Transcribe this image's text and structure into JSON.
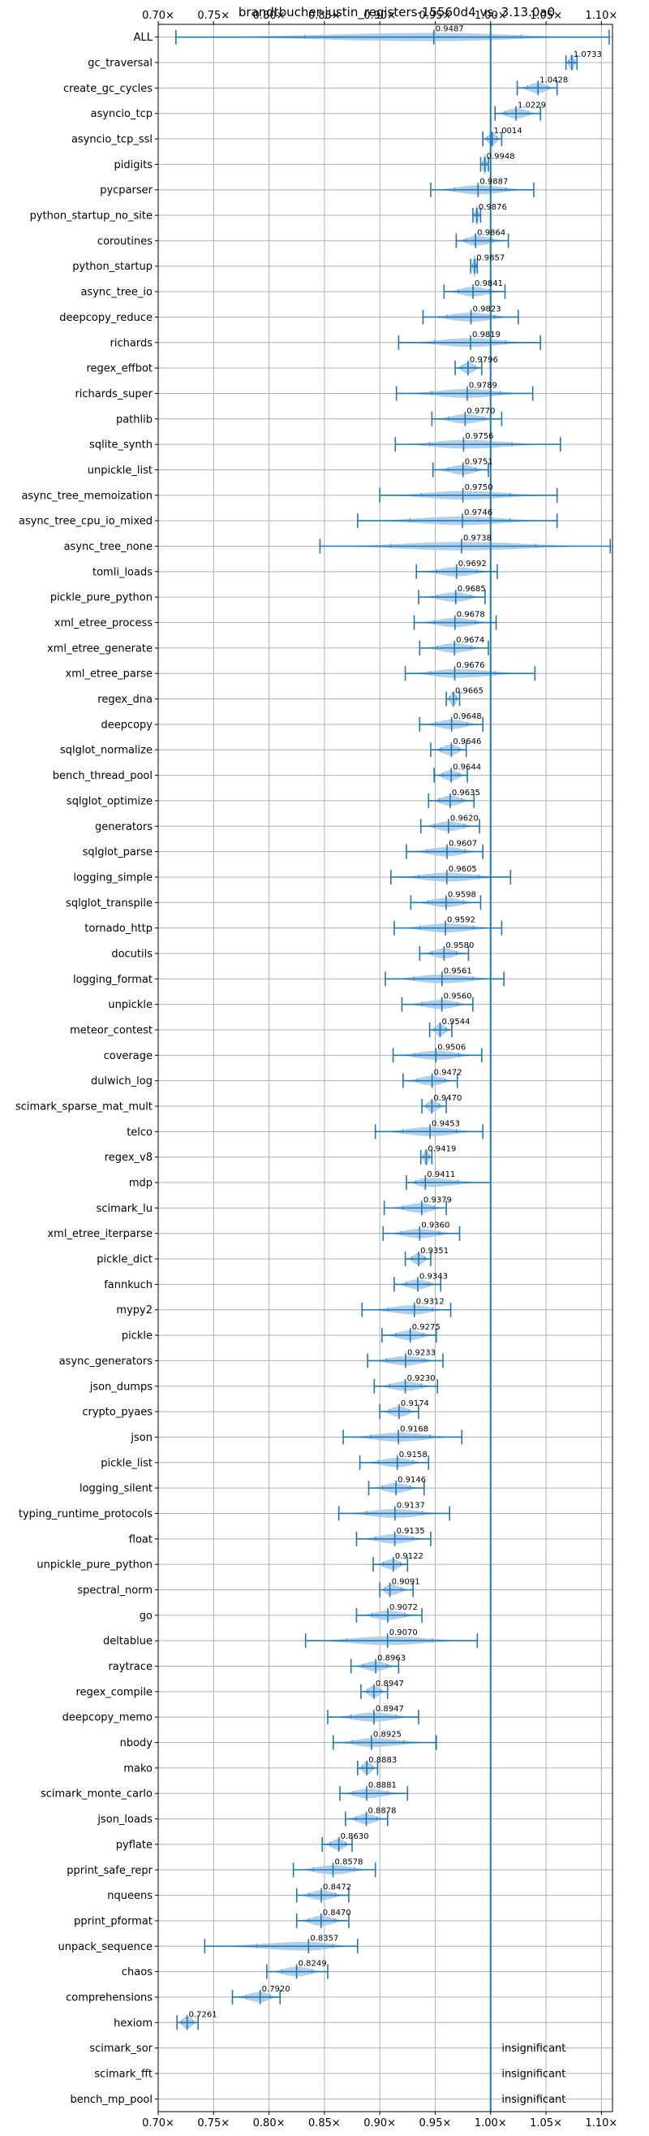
{
  "chart_data": {
    "type": "violin",
    "title": "brandtbucher-justin_registers-15560d4 vs. 3.13.0a0",
    "xlabel": "",
    "ylabel": "",
    "xlim": [
      0.7,
      1.11
    ],
    "xticks": [
      0.7,
      0.75,
      0.8,
      0.85,
      0.9,
      0.95,
      1.0,
      1.05,
      1.1
    ],
    "xtick_labels": [
      "0.70×",
      "0.75×",
      "0.80×",
      "0.85×",
      "0.90×",
      "0.95×",
      "1.00×",
      "1.05×",
      "1.10×"
    ],
    "reference_line": 1.0,
    "grid": true,
    "colors": {
      "violin": "#a6c8e6",
      "line": "#1f77b4",
      "grid": "#b0b0b0"
    },
    "insignificant_text": "insignificant",
    "benchmarks": [
      {
        "name": "ALL",
        "value": 0.9487,
        "label": "0.9487",
        "min": 0.716,
        "max": 1.107
      },
      {
        "name": "gc_traversal",
        "value": 1.0733,
        "label": "1.0733",
        "min": 1.068,
        "max": 1.078
      },
      {
        "name": "create_gc_cycles",
        "value": 1.0428,
        "label": "1.0428",
        "min": 1.024,
        "max": 1.06
      },
      {
        "name": "asyncio_tcp",
        "value": 1.0229,
        "label": "1.0229",
        "min": 1.004,
        "max": 1.045
      },
      {
        "name": "asyncio_tcp_ssl",
        "value": 1.0014,
        "label": "1.0014",
        "min": 0.993,
        "max": 1.01
      },
      {
        "name": "pidigits",
        "value": 0.9948,
        "label": "0.9948",
        "min": 0.991,
        "max": 0.998
      },
      {
        "name": "pycparser",
        "value": 0.9887,
        "label": "0.9887",
        "min": 0.946,
        "max": 1.039
      },
      {
        "name": "python_startup_no_site",
        "value": 0.9876,
        "label": "0.9876",
        "min": 0.984,
        "max": 0.991
      },
      {
        "name": "coroutines",
        "value": 0.9864,
        "label": "0.9864",
        "min": 0.969,
        "max": 1.016
      },
      {
        "name": "python_startup",
        "value": 0.9857,
        "label": "0.9857",
        "min": 0.982,
        "max": 0.988
      },
      {
        "name": "async_tree_io",
        "value": 0.9841,
        "label": "0.9841",
        "min": 0.958,
        "max": 1.013
      },
      {
        "name": "deepcopy_reduce",
        "value": 0.9823,
        "label": "0.9823",
        "min": 0.939,
        "max": 1.025
      },
      {
        "name": "richards",
        "value": 0.9819,
        "label": "0.9819",
        "min": 0.917,
        "max": 1.045
      },
      {
        "name": "regex_effbot",
        "value": 0.9796,
        "label": "0.9796",
        "min": 0.968,
        "max": 0.992
      },
      {
        "name": "richards_super",
        "value": 0.9789,
        "label": "0.9789",
        "min": 0.915,
        "max": 1.038
      },
      {
        "name": "pathlib",
        "value": 0.977,
        "label": "0.9770",
        "min": 0.947,
        "max": 1.01
      },
      {
        "name": "sqlite_synth",
        "value": 0.9756,
        "label": "0.9756",
        "min": 0.914,
        "max": 1.063
      },
      {
        "name": "unpickle_list",
        "value": 0.9751,
        "label": "0.9751",
        "min": 0.948,
        "max": 0.998
      },
      {
        "name": "async_tree_memoization",
        "value": 0.975,
        "label": "0.9750",
        "min": 0.9,
        "max": 1.06
      },
      {
        "name": "async_tree_cpu_io_mixed",
        "value": 0.9746,
        "label": "0.9746",
        "min": 0.88,
        "max": 1.06
      },
      {
        "name": "async_tree_none",
        "value": 0.9738,
        "label": "0.9738",
        "min": 0.846,
        "max": 1.108
      },
      {
        "name": "tomli_loads",
        "value": 0.9692,
        "label": "0.9692",
        "min": 0.933,
        "max": 1.006
      },
      {
        "name": "pickle_pure_python",
        "value": 0.9685,
        "label": "0.9685",
        "min": 0.935,
        "max": 0.995
      },
      {
        "name": "xml_etree_process",
        "value": 0.9678,
        "label": "0.9678",
        "min": 0.931,
        "max": 1.005
      },
      {
        "name": "xml_etree_generate",
        "value": 0.9674,
        "label": "0.9674",
        "min": 0.936,
        "max": 0.998
      },
      {
        "name": "xml_etree_parse",
        "value": 0.9676,
        "label": "0.9676",
        "min": 0.923,
        "max": 1.04
      },
      {
        "name": "regex_dna",
        "value": 0.9665,
        "label": "0.9665",
        "min": 0.96,
        "max": 0.972
      },
      {
        "name": "deepcopy",
        "value": 0.9648,
        "label": "0.9648",
        "min": 0.936,
        "max": 0.993
      },
      {
        "name": "sqlglot_normalize",
        "value": 0.9646,
        "label": "0.9646",
        "min": 0.946,
        "max": 0.978
      },
      {
        "name": "bench_thread_pool",
        "value": 0.9644,
        "label": "0.9644",
        "min": 0.949,
        "max": 0.979
      },
      {
        "name": "sqlglot_optimize",
        "value": 0.9635,
        "label": "0.9635",
        "min": 0.944,
        "max": 0.985
      },
      {
        "name": "generators",
        "value": 0.962,
        "label": "0.9620",
        "min": 0.937,
        "max": 0.99
      },
      {
        "name": "sqlglot_parse",
        "value": 0.9607,
        "label": "0.9607",
        "min": 0.924,
        "max": 0.993
      },
      {
        "name": "logging_simple",
        "value": 0.9605,
        "label": "0.9605",
        "min": 0.91,
        "max": 1.018
      },
      {
        "name": "sqlglot_transpile",
        "value": 0.9598,
        "label": "0.9598",
        "min": 0.928,
        "max": 0.991
      },
      {
        "name": "tornado_http",
        "value": 0.9592,
        "label": "0.9592",
        "min": 0.913,
        "max": 1.01
      },
      {
        "name": "docutils",
        "value": 0.958,
        "label": "0.9580",
        "min": 0.936,
        "max": 0.98
      },
      {
        "name": "logging_format",
        "value": 0.9561,
        "label": "0.9561",
        "min": 0.905,
        "max": 1.012
      },
      {
        "name": "unpickle",
        "value": 0.956,
        "label": "0.9560",
        "min": 0.92,
        "max": 0.984
      },
      {
        "name": "meteor_contest",
        "value": 0.9544,
        "label": "0.9544",
        "min": 0.945,
        "max": 0.965
      },
      {
        "name": "coverage",
        "value": 0.9506,
        "label": "0.9506",
        "min": 0.912,
        "max": 0.992
      },
      {
        "name": "dulwich_log",
        "value": 0.9472,
        "label": "0.9472",
        "min": 0.921,
        "max": 0.97
      },
      {
        "name": "scimark_sparse_mat_mult",
        "value": 0.947,
        "label": "0.9470",
        "min": 0.938,
        "max": 0.96
      },
      {
        "name": "telco",
        "value": 0.9453,
        "label": "0.9453",
        "min": 0.896,
        "max": 0.993
      },
      {
        "name": "regex_v8",
        "value": 0.9419,
        "label": "0.9419",
        "min": 0.937,
        "max": 0.947
      },
      {
        "name": "mdp",
        "value": 0.9411,
        "label": "0.9411",
        "min": 0.924,
        "max": 1.0
      },
      {
        "name": "scimark_lu",
        "value": 0.9379,
        "label": "0.9379",
        "min": 0.904,
        "max": 0.96
      },
      {
        "name": "xml_etree_iterparse",
        "value": 0.936,
        "label": "0.9360",
        "min": 0.903,
        "max": 0.972
      },
      {
        "name": "pickle_dict",
        "value": 0.9351,
        "label": "0.9351",
        "min": 0.923,
        "max": 0.946
      },
      {
        "name": "fannkuch",
        "value": 0.9343,
        "label": "0.9343",
        "min": 0.913,
        "max": 0.955
      },
      {
        "name": "mypy2",
        "value": 0.9312,
        "label": "0.9312",
        "min": 0.884,
        "max": 0.964
      },
      {
        "name": "pickle",
        "value": 0.9275,
        "label": "0.9275",
        "min": 0.902,
        "max": 0.951
      },
      {
        "name": "async_generators",
        "value": 0.9233,
        "label": "0.9233",
        "min": 0.889,
        "max": 0.957
      },
      {
        "name": "json_dumps",
        "value": 0.923,
        "label": "0.9230",
        "min": 0.895,
        "max": 0.952
      },
      {
        "name": "crypto_pyaes",
        "value": 0.9174,
        "label": "0.9174",
        "min": 0.9,
        "max": 0.935
      },
      {
        "name": "json",
        "value": 0.9168,
        "label": "0.9168",
        "min": 0.867,
        "max": 0.974
      },
      {
        "name": "pickle_list",
        "value": 0.9158,
        "label": "0.9158",
        "min": 0.882,
        "max": 0.944
      },
      {
        "name": "logging_silent",
        "value": 0.9146,
        "label": "0.9146",
        "min": 0.89,
        "max": 0.94
      },
      {
        "name": "typing_runtime_protocols",
        "value": 0.9137,
        "label": "0.9137",
        "min": 0.863,
        "max": 0.963
      },
      {
        "name": "float",
        "value": 0.9135,
        "label": "0.9135",
        "min": 0.879,
        "max": 0.946
      },
      {
        "name": "unpickle_pure_python",
        "value": 0.9122,
        "label": "0.9122",
        "min": 0.894,
        "max": 0.925
      },
      {
        "name": "spectral_norm",
        "value": 0.9091,
        "label": "0.9091",
        "min": 0.9,
        "max": 0.93
      },
      {
        "name": "go",
        "value": 0.9072,
        "label": "0.9072",
        "min": 0.879,
        "max": 0.938
      },
      {
        "name": "deltablue",
        "value": 0.907,
        "label": "0.9070",
        "min": 0.833,
        "max": 0.988
      },
      {
        "name": "raytrace",
        "value": 0.8963,
        "label": "0.8963",
        "min": 0.874,
        "max": 0.917
      },
      {
        "name": "regex_compile",
        "value": 0.8947,
        "label": "0.8947",
        "min": 0.883,
        "max": 0.907
      },
      {
        "name": "deepcopy_memo",
        "value": 0.8947,
        "label": "0.8947",
        "min": 0.853,
        "max": 0.935
      },
      {
        "name": "nbody",
        "value": 0.8925,
        "label": "0.8925",
        "min": 0.858,
        "max": 0.951
      },
      {
        "name": "mako",
        "value": 0.8883,
        "label": "0.8883",
        "min": 0.88,
        "max": 0.898
      },
      {
        "name": "scimark_monte_carlo",
        "value": 0.8881,
        "label": "0.8881",
        "min": 0.864,
        "max": 0.925
      },
      {
        "name": "json_loads",
        "value": 0.8878,
        "label": "0.8878",
        "min": 0.869,
        "max": 0.907
      },
      {
        "name": "pyflate",
        "value": 0.863,
        "label": "0.8630",
        "min": 0.848,
        "max": 0.875
      },
      {
        "name": "pprint_safe_repr",
        "value": 0.8578,
        "label": "0.8578",
        "min": 0.822,
        "max": 0.896
      },
      {
        "name": "nqueens",
        "value": 0.8472,
        "label": "0.8472",
        "min": 0.825,
        "max": 0.872
      },
      {
        "name": "pprint_pformat",
        "value": 0.847,
        "label": "0.8470",
        "min": 0.825,
        "max": 0.872
      },
      {
        "name": "unpack_sequence",
        "value": 0.8357,
        "label": "0.8357",
        "min": 0.742,
        "max": 0.88
      },
      {
        "name": "chaos",
        "value": 0.8249,
        "label": "0.8249",
        "min": 0.798,
        "max": 0.853
      },
      {
        "name": "comprehensions",
        "value": 0.792,
        "label": "0.7920",
        "min": 0.767,
        "max": 0.81
      },
      {
        "name": "hexiom",
        "value": 0.7261,
        "label": "0.7261",
        "min": 0.717,
        "max": 0.736
      },
      {
        "name": "scimark_sor",
        "insignificant": true
      },
      {
        "name": "scimark_fft",
        "insignificant": true
      },
      {
        "name": "bench_mp_pool",
        "insignificant": true
      }
    ]
  }
}
